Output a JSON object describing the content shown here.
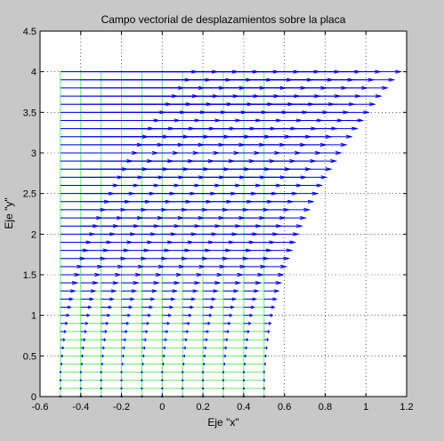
{
  "chart_data": {
    "type": "quiver",
    "title": "Campo vectorial de desplazamientos sobre la placa",
    "xlabel": "Eje \"x\"",
    "ylabel": "Eje \"y\"",
    "xlim": [
      -0.6,
      1.2
    ],
    "ylim": [
      0,
      4.5
    ],
    "xticks": [
      -0.6,
      -0.4,
      -0.2,
      0,
      0.2,
      0.4,
      0.6,
      0.8,
      1,
      1.2
    ],
    "yticks": [
      0,
      0.5,
      1,
      1.5,
      2,
      2.5,
      3,
      3.5,
      4,
      4.5
    ],
    "xtick_labels": [
      "-0.6",
      "-0.4",
      "-0.2",
      "0",
      "0.2",
      "0.4",
      "0.6",
      "0.8",
      "1",
      "1.2"
    ],
    "ytick_labels": [
      "0",
      "0.5",
      "1",
      "1.5",
      "2",
      "2.5",
      "3",
      "3.5",
      "4",
      "4.5"
    ],
    "grid": "dotted",
    "plate": {
      "color": "#66ee66",
      "x_lines": [
        -0.5,
        -0.4,
        -0.3,
        -0.2,
        -0.1,
        0,
        0.1,
        0.2,
        0.3,
        0.4,
        0.5
      ],
      "y_range": [
        0,
        4
      ],
      "y_step": 0.1,
      "x_range": [
        -0.5,
        0.5
      ]
    },
    "vectors": {
      "color": "#0000ff",
      "x_start": -0.5,
      "x_end": 0.5,
      "x_step": 0.1,
      "y_start": 0,
      "y_end": 4,
      "y_step": 0.1,
      "x_displacement_at_top": 0.67,
      "displacement_profile": "quadratic-in-y"
    },
    "axes_color": "#ffffff",
    "figure_color": "#c8c8c8"
  }
}
